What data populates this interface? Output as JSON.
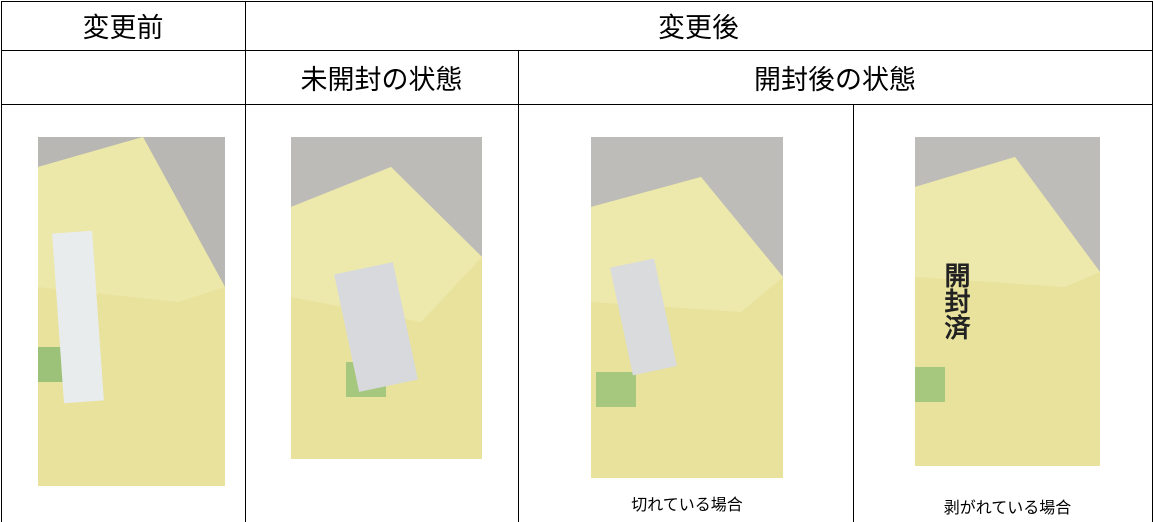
{
  "header": {
    "before": "変更前",
    "after": "変更後"
  },
  "subheader": {
    "unopened": "未開封の状態",
    "opened": "開封後の状態"
  },
  "captions": {
    "torn": "切れている場合",
    "peeled": "剥がれている場合"
  },
  "photo_label": "開封済"
}
